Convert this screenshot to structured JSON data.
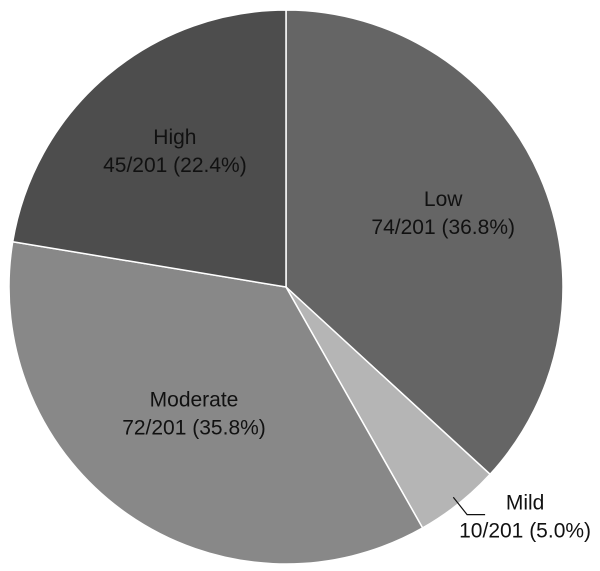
{
  "chart_data": {
    "type": "pie",
    "title": "",
    "total": 201,
    "start_angle_deg": 0,
    "direction": "clockwise",
    "slices": [
      {
        "name": "Low",
        "value": 74,
        "text": "74/201 (36.8%)",
        "color": "#656565"
      },
      {
        "name": "Mild",
        "value": 10,
        "text": "10/201 (5.0%)",
        "color": "#b5b5b5"
      },
      {
        "name": "Moderate",
        "value": 72,
        "text": "72/201 (35.8%)",
        "color": "#888888"
      },
      {
        "name": "High",
        "value": 45,
        "text": "45/201 (22.4%)",
        "color": "#4d4d4d"
      }
    ]
  }
}
